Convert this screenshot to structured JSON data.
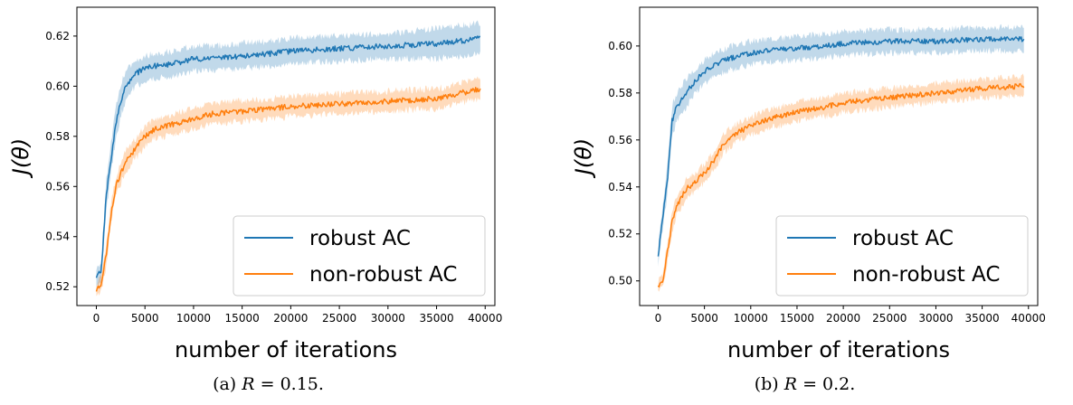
{
  "colors": {
    "robust": "#1f77b4",
    "nonrobust": "#ff7f0e"
  },
  "chart_data": [
    {
      "type": "line",
      "caption_prefix": "(a)",
      "caption_R": "R",
      "caption_eq": " = 0.15.",
      "xlabel": "number of iterations",
      "ylabel": "J(θ)",
      "xlim": [
        -2000,
        41000
      ],
      "ylim": [
        0.5125,
        0.6315
      ],
      "xticks": [
        0,
        5000,
        10000,
        15000,
        20000,
        25000,
        30000,
        35000,
        40000
      ],
      "yticks": [
        0.52,
        0.54,
        0.56,
        0.58,
        0.6,
        0.62
      ],
      "ytick_labels": [
        "0.52",
        "0.54",
        "0.56",
        "0.58",
        "0.60",
        "0.62"
      ],
      "legend_position": "lower-right",
      "series": [
        {
          "name": "robust AC",
          "color_key": "robust",
          "x": [
            0,
            500,
            1000,
            1500,
            2000,
            2500,
            3000,
            4000,
            5000,
            6000,
            8000,
            10000,
            12000,
            15000,
            18000,
            20000,
            25000,
            30000,
            35000,
            39500
          ],
          "y": [
            0.524,
            0.526,
            0.556,
            0.571,
            0.585,
            0.594,
            0.6,
            0.605,
            0.607,
            0.608,
            0.609,
            0.611,
            0.611,
            0.612,
            0.613,
            0.614,
            0.615,
            0.616,
            0.617,
            0.619
          ],
          "band": [
            0.004,
            0.004,
            0.006,
            0.006,
            0.006,
            0.006,
            0.006,
            0.005,
            0.005,
            0.005,
            0.005,
            0.005,
            0.005,
            0.005,
            0.005,
            0.005,
            0.005,
            0.005,
            0.006,
            0.006
          ]
        },
        {
          "name": "non-robust AC",
          "color_key": "nonrobust",
          "x": [
            0,
            500,
            1000,
            1500,
            2000,
            3000,
            4000,
            5000,
            6000,
            8000,
            10000,
            12000,
            15000,
            18000,
            20000,
            25000,
            30000,
            35000,
            39500
          ],
          "y": [
            0.519,
            0.521,
            0.532,
            0.549,
            0.56,
            0.57,
            0.575,
            0.58,
            0.583,
            0.585,
            0.587,
            0.589,
            0.59,
            0.591,
            0.592,
            0.593,
            0.594,
            0.595,
            0.599
          ],
          "band": [
            0.002,
            0.003,
            0.004,
            0.004,
            0.004,
            0.004,
            0.004,
            0.004,
            0.004,
            0.004,
            0.004,
            0.004,
            0.004,
            0.004,
            0.004,
            0.004,
            0.004,
            0.004,
            0.004
          ]
        }
      ]
    },
    {
      "type": "line",
      "caption_prefix": "(b)",
      "caption_R": "R",
      "caption_eq": " = 0.2.",
      "xlabel": "number of iterations",
      "ylabel": "J(θ)",
      "xlim": [
        -2000,
        41000
      ],
      "ylim": [
        0.4895,
        0.6165
      ],
      "xticks": [
        0,
        5000,
        10000,
        15000,
        20000,
        25000,
        30000,
        35000,
        40000
      ],
      "yticks": [
        0.5,
        0.52,
        0.54,
        0.56,
        0.58,
        0.6
      ],
      "ytick_labels": [
        "0.50",
        "0.52",
        "0.54",
        "0.56",
        "0.58",
        "0.60"
      ],
      "legend_position": "lower-right",
      "series": [
        {
          "name": "robust AC",
          "color_key": "robust",
          "x": [
            0,
            200,
            500,
            1000,
            1500,
            2000,
            3000,
            4000,
            5000,
            6000,
            8000,
            10000,
            12000,
            15000,
            18000,
            20000,
            25000,
            30000,
            35000,
            39500
          ],
          "y": [
            0.51,
            0.518,
            0.527,
            0.543,
            0.568,
            0.574,
            0.58,
            0.585,
            0.589,
            0.592,
            0.595,
            0.597,
            0.598,
            0.599,
            0.6,
            0.601,
            0.602,
            0.602,
            0.603,
            0.603
          ],
          "band": [
            0.004,
            0.004,
            0.005,
            0.006,
            0.006,
            0.006,
            0.006,
            0.005,
            0.005,
            0.005,
            0.005,
            0.005,
            0.005,
            0.005,
            0.005,
            0.005,
            0.005,
            0.005,
            0.005,
            0.005
          ]
        },
        {
          "name": "non-robust AC",
          "color_key": "nonrobust",
          "x": [
            0,
            500,
            1000,
            1500,
            2000,
            3000,
            4000,
            5000,
            6000,
            7000,
            8000,
            10000,
            12000,
            15000,
            18000,
            20000,
            25000,
            30000,
            35000,
            39500
          ],
          "y": [
            0.498,
            0.5,
            0.512,
            0.525,
            0.532,
            0.539,
            0.542,
            0.546,
            0.551,
            0.558,
            0.562,
            0.566,
            0.569,
            0.572,
            0.574,
            0.576,
            0.578,
            0.58,
            0.582,
            0.583
          ],
          "band": [
            0.002,
            0.003,
            0.004,
            0.004,
            0.004,
            0.004,
            0.004,
            0.004,
            0.004,
            0.004,
            0.004,
            0.004,
            0.004,
            0.004,
            0.004,
            0.004,
            0.004,
            0.004,
            0.004,
            0.004
          ]
        }
      ]
    }
  ]
}
